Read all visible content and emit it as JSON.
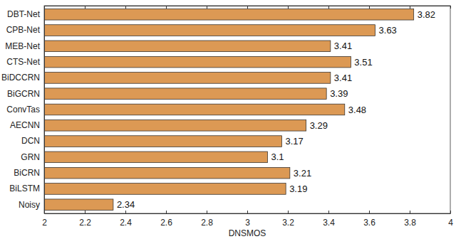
{
  "chart_data": {
    "type": "bar",
    "orientation": "horizontal",
    "categories": [
      "DBT-Net",
      "CPB-Net",
      "MEB-Net",
      "CTS-Net",
      "BiDCCRN",
      "BiGCRN",
      "ConvTas",
      "AECNN",
      "DCN",
      "GRN",
      "BiCRN",
      "BiLSTM",
      "Noisy"
    ],
    "values": [
      3.82,
      3.63,
      3.41,
      3.51,
      3.41,
      3.39,
      3.48,
      3.29,
      3.17,
      3.1,
      3.21,
      3.19,
      2.34
    ],
    "color": "#dc9954",
    "xlabel": "DNSMOS",
    "xlim": [
      2,
      4
    ],
    "xticks": [
      2,
      2.2,
      2.4,
      2.6,
      2.8,
      3,
      3.2,
      3.4,
      3.6,
      3.8,
      4
    ],
    "data_labels": true,
    "grid": false
  }
}
